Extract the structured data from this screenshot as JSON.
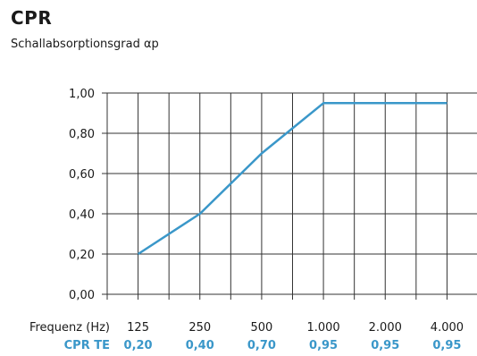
{
  "header": {
    "title": "CPR",
    "subtitle": "Schallabsorptionsgrad αp"
  },
  "colors": {
    "series": "#3a97c9",
    "grid": "#333333",
    "text": "#1a1a1a"
  },
  "chart_data": {
    "type": "line",
    "categories": [
      "125",
      "250",
      "500",
      "1.000",
      "2.000",
      "4.000"
    ],
    "category_row_label": "Frequenz (Hz)",
    "y_ticks": [
      "0,00",
      "0,20",
      "0,40",
      "0,60",
      "0,80",
      "1,00"
    ],
    "ylim": [
      0,
      1
    ],
    "grid": true,
    "series": [
      {
        "name": "CPR TE",
        "values": [
          0.2,
          0.4,
          0.7,
          0.95,
          0.95,
          0.95
        ],
        "value_labels": [
          "0,20",
          "0,40",
          "0,70",
          "0,95",
          "0,95",
          "0,95"
        ]
      }
    ]
  }
}
